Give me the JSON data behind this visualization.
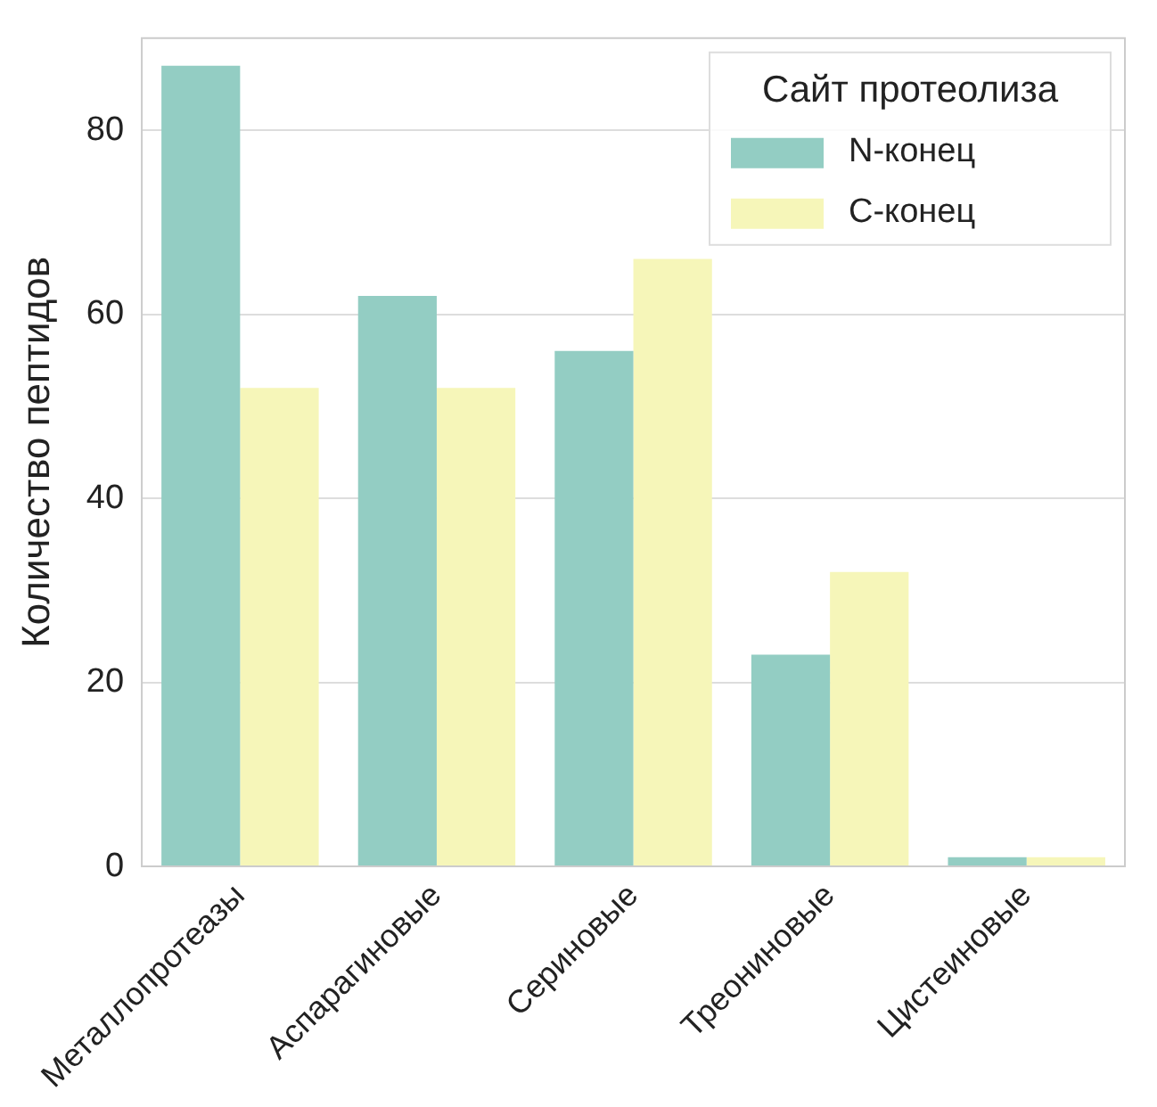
{
  "chart_data": {
    "type": "bar",
    "ylabel": "Количество пептидов",
    "legend_title": "Сайт протеолиза",
    "categories": [
      "Металлопротеазы",
      "Аспарагиновые",
      "Сериновые",
      "Треониновые",
      "Цистеиновые"
    ],
    "series": [
      {
        "name": "N-конец",
        "color": "#93cdc3",
        "values": [
          87,
          62,
          56,
          23,
          1
        ]
      },
      {
        "name": "C-конец",
        "color": "#f6f6b9",
        "values": [
          52,
          52,
          66,
          32,
          1
        ]
      }
    ],
    "ylim": [
      0,
      90
    ],
    "yticks": [
      0,
      20,
      40,
      60,
      80
    ],
    "grid": "y",
    "legend": "top right"
  }
}
